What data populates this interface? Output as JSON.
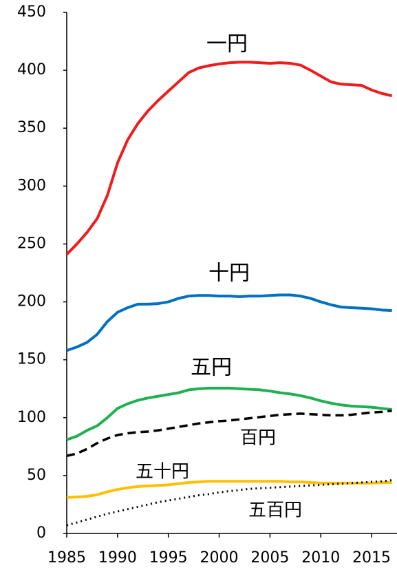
{
  "chart_data": {
    "type": "line",
    "x": [
      1985,
      1986,
      1987,
      1988,
      1989,
      1990,
      1991,
      1992,
      1993,
      1994,
      1995,
      1996,
      1997,
      1998,
      1999,
      2000,
      2001,
      2002,
      2003,
      2004,
      2005,
      2006,
      2007,
      2008,
      2009,
      2010,
      2011,
      2012,
      2013,
      2014,
      2015,
      2016,
      2017
    ],
    "xlim": [
      1985,
      2017.5
    ],
    "xticks": [
      1985,
      1990,
      1995,
      2000,
      2005,
      2010,
      2015
    ],
    "ylim": [
      0,
      450
    ],
    "yticks": [
      0,
      50,
      100,
      150,
      200,
      250,
      300,
      350,
      400,
      450
    ],
    "grid": false,
    "series": [
      {
        "name": "一円",
        "color": "#ee1c1c",
        "style": "solid",
        "values": [
          241,
          250,
          260,
          272,
          292,
          320,
          340,
          354,
          365,
          374,
          382,
          390,
          398,
          402,
          404,
          405.5,
          406.5,
          407,
          407,
          406.5,
          406,
          406.5,
          406,
          404.5,
          400,
          395,
          390,
          388,
          387.5,
          387,
          383,
          380,
          378
        ]
      },
      {
        "name": "十円",
        "color": "#0070c0",
        "style": "solid",
        "values": [
          158,
          161,
          165,
          172,
          183,
          191,
          195,
          198,
          198,
          198.5,
          200,
          203,
          205,
          205.5,
          205.5,
          205,
          205,
          204.5,
          205,
          205,
          205.5,
          206,
          206,
          205,
          203,
          200,
          197.5,
          195.5,
          195,
          194.5,
          194,
          193,
          192.5
        ]
      },
      {
        "name": "五円",
        "color": "#1fb050",
        "style": "solid",
        "values": [
          81,
          84,
          89,
          93,
          100,
          108,
          112,
          115,
          117,
          118.5,
          120,
          121.5,
          124,
          125,
          125.5,
          125.5,
          125.5,
          125,
          124.5,
          124,
          123,
          121.5,
          120.5,
          119,
          117,
          114.5,
          112.5,
          111,
          110,
          109.5,
          109,
          108,
          107
        ]
      },
      {
        "name": "百円",
        "color": "#000000",
        "style": "dashed",
        "values": [
          67,
          69,
          73,
          78,
          82,
          85,
          86.5,
          87.5,
          88,
          89,
          90.5,
          92,
          93.5,
          95,
          96,
          97,
          97.5,
          98.5,
          99.5,
          100.5,
          101.5,
          102.5,
          103,
          103.5,
          103,
          102.5,
          102,
          102,
          102.5,
          103.5,
          104.5,
          105,
          106
        ]
      },
      {
        "name": "五十円",
        "color": "#ffc000",
        "style": "solid",
        "values": [
          31,
          31.5,
          32,
          33.5,
          36,
          38,
          39.5,
          40.5,
          41,
          41.5,
          42,
          43,
          44,
          44.5,
          45,
          45,
          45,
          45,
          45,
          45,
          45,
          45,
          44.5,
          44.5,
          44,
          43.5,
          43.5,
          43.5,
          43.5,
          43.5,
          43.5,
          44,
          44
        ]
      },
      {
        "name": "五百円",
        "color": "#000000",
        "style": "dotted",
        "values": [
          7,
          9.5,
          12,
          14.5,
          17,
          19,
          21,
          23,
          25,
          27,
          28.5,
          30,
          31.5,
          33,
          34,
          35.5,
          36.5,
          37.5,
          38.5,
          39,
          39.5,
          40,
          40.5,
          41,
          41.5,
          42,
          42.5,
          43,
          43.5,
          44,
          44.5,
          45,
          46
        ]
      }
    ]
  }
}
